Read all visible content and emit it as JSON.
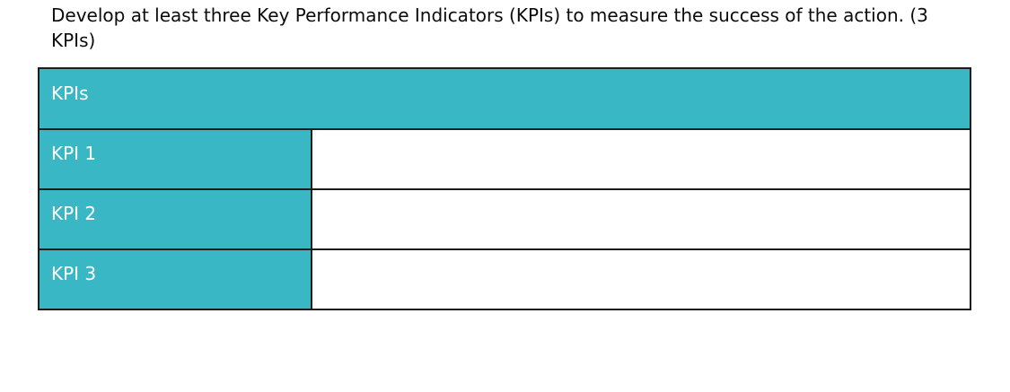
{
  "instruction": {
    "text": "Develop at least three Key Performance Indicators (KPIs) to measure the success of the action. (3 KPIs)"
  },
  "table": {
    "header": "KPIs",
    "rows": [
      {
        "label": "KPI 1",
        "value": ""
      },
      {
        "label": "KPI 2",
        "value": ""
      },
      {
        "label": "KPI 3",
        "value": ""
      }
    ]
  },
  "colors": {
    "cell_teal": "#3ab7c4",
    "border": "#1c1c1c",
    "header_text": "#ffffff",
    "instruction_text": "#0b0b0b",
    "background": "#ffffff"
  }
}
